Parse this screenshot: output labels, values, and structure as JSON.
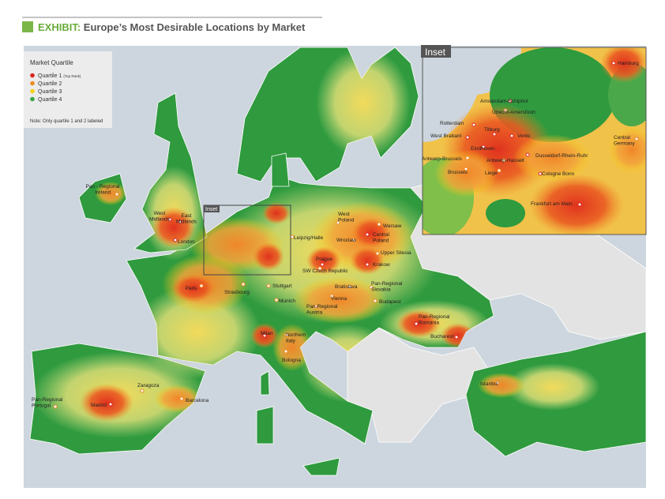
{
  "header": {
    "prefix": "EXHIBIT:",
    "title": "Europe’s Most Desirable Locations by Market"
  },
  "legend": {
    "title": "Market Quartile",
    "items": [
      {
        "label": "Quartile 1",
        "note": "(Top Rank)",
        "color": "#d9261c"
      },
      {
        "label": "Quartile 2",
        "color": "#f08a24"
      },
      {
        "label": "Quartile 3",
        "color": "#f5d213"
      },
      {
        "label": "Quartile 4",
        "color": "#3aa546"
      }
    ],
    "note": "Note: Only quartile 1 and 2 labeled"
  },
  "map": {
    "inset_label": "Inset",
    "locations": [
      {
        "lines": [
          "Pan - Regional",
          "Ireland"
        ],
        "quartile": 2
      },
      {
        "lines": [
          "West",
          "Midlands"
        ],
        "quartile": 1
      },
      {
        "lines": [
          "East",
          "Midlands"
        ],
        "quartile": 1
      },
      {
        "lines": [
          "London"
        ],
        "quartile": 1
      },
      {
        "lines": [
          "Paris"
        ],
        "quartile": 2
      },
      {
        "lines": [
          "Strasbourg"
        ],
        "quartile": 2
      },
      {
        "lines": [
          "Stuttgart"
        ],
        "quartile": 2
      },
      {
        "lines": [
          "Munich"
        ],
        "quartile": 2
      },
      {
        "lines": [
          "Milan"
        ],
        "quartile": 1
      },
      {
        "lines": [
          "Northern",
          "Italy"
        ],
        "quartile": 2
      },
      {
        "lines": [
          "Bologna"
        ],
        "quartile": 2
      },
      {
        "lines": [
          "Leipzig/Halle"
        ],
        "quartile": 2
      },
      {
        "lines": [
          "West",
          "Poland"
        ],
        "quartile": 2
      },
      {
        "lines": [
          "Warsaw"
        ],
        "quartile": 2
      },
      {
        "lines": [
          "Central",
          "Poland"
        ],
        "quartile": 1
      },
      {
        "lines": [
          "Wroclaw"
        ],
        "quartile": 2
      },
      {
        "lines": [
          "Upper Silesia"
        ],
        "quartile": 2
      },
      {
        "lines": [
          "Krakow"
        ],
        "quartile": 1
      },
      {
        "lines": [
          "Prague"
        ],
        "quartile": 1
      },
      {
        "lines": [
          "SW Czech Republic"
        ],
        "quartile": 2
      },
      {
        "lines": [
          "Bratislava"
        ],
        "quartile": 2
      },
      {
        "lines": [
          "Pan-Regional",
          "Slovakia"
        ],
        "quartile": 2
      },
      {
        "lines": [
          "Vienna"
        ],
        "quartile": 2
      },
      {
        "lines": [
          "Pan-Regional",
          "Austria"
        ],
        "quartile": 2
      },
      {
        "lines": [
          "Budapest"
        ],
        "quartile": 2
      },
      {
        "lines": [
          "Pan-Regional",
          "Romania"
        ],
        "quartile": 1
      },
      {
        "lines": [
          "Bucharest"
        ],
        "quartile": 1
      },
      {
        "lines": [
          "Istanbul"
        ],
        "quartile": 2
      },
      {
        "lines": [
          "Zaragoza"
        ],
        "quartile": 2
      },
      {
        "lines": [
          "Madrid"
        ],
        "quartile": 1
      },
      {
        "lines": [
          "Barcelona"
        ],
        "quartile": 2
      },
      {
        "lines": [
          "Pan-Regional",
          "Portugal"
        ],
        "quartile": 2
      }
    ]
  },
  "inset": {
    "title": "Inset",
    "locations": [
      {
        "lines": [
          "Hamburg"
        ],
        "quartile": 1
      },
      {
        "lines": [
          "Amsterdam-Schiphol"
        ],
        "quartile": 1
      },
      {
        "lines": [
          "Utrecht-Amersfoort"
        ],
        "quartile": 2
      },
      {
        "lines": [
          "Rotterdam"
        ],
        "quartile": 1
      },
      {
        "lines": [
          "Tilburg"
        ],
        "quartile": 1
      },
      {
        "lines": [
          "Venlo"
        ],
        "quartile": 1
      },
      {
        "lines": [
          "West Brabant"
        ],
        "quartile": 1
      },
      {
        "lines": [
          "Eindhoven"
        ],
        "quartile": 1
      },
      {
        "lines": [
          "Dusseldorf-Rhein-Ruhr"
        ],
        "quartile": 1
      },
      {
        "lines": [
          "Central",
          "Germany"
        ],
        "quartile": 2
      },
      {
        "lines": [
          "Antwerp-Brussels"
        ],
        "quartile": 2
      },
      {
        "lines": [
          "Antwerp-Hasselt"
        ],
        "quartile": 2
      },
      {
        "lines": [
          "Brussels"
        ],
        "quartile": 2
      },
      {
        "lines": [
          "Liege"
        ],
        "quartile": 2
      },
      {
        "lines": [
          "Cologne Bonn"
        ],
        "quartile": 1
      },
      {
        "lines": [
          "Frankfurt am Main"
        ],
        "quartile": 1
      }
    ]
  }
}
